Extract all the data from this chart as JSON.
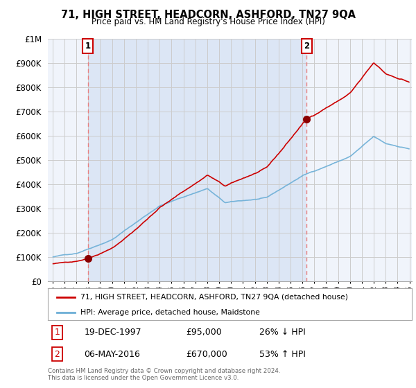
{
  "title": "71, HIGH STREET, HEADCORN, ASHFORD, TN27 9QA",
  "subtitle": "Price paid vs. HM Land Registry's House Price Index (HPI)",
  "sale1_date": "19-DEC-1997",
  "sale1_price": 95000,
  "sale1_label": "26% ↓ HPI",
  "sale1_year": 1997.97,
  "sale2_date": "06-MAY-2016",
  "sale2_price": 670000,
  "sale2_label": "53% ↑ HPI",
  "sale2_year": 2016.35,
  "legend_line1": "71, HIGH STREET, HEADCORN, ASHFORD, TN27 9QA (detached house)",
  "legend_line2": "HPI: Average price, detached house, Maidstone",
  "footer": "Contains HM Land Registry data © Crown copyright and database right 2024.\nThis data is licensed under the Open Government Licence v3.0.",
  "line_color": "#cc0000",
  "hpi_color": "#6baed6",
  "marker_color": "#8b0000",
  "dashed_color": "#e88080",
  "fill_color": "#dce6f5",
  "ylim_max": 1000000,
  "ylim_min": 0,
  "xlim_min": 1994.6,
  "xlim_max": 2025.2,
  "background_color": "#ffffff",
  "grid_color": "#cccccc",
  "plot_bg": "#f0f4fb"
}
